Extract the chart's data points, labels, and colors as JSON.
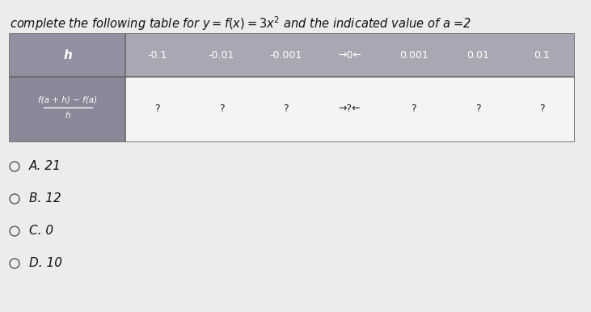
{
  "title": "complete the following table for $y = f(x) = 3x^2$ and the indicated value of $a$ =2",
  "bg_color": "#e8e8e8",
  "table_outer_color": "#888888",
  "header_cell_bg": "#a8a8b0",
  "label_cell_bg": "#989898",
  "label_cell_bg2": "#8a8a92",
  "data_cell_bg": "#f0f0f0",
  "h_values": [
    "-0.1",
    "-0.01",
    "-0.001",
    "→0←",
    "0.001",
    "0.01",
    "0.1"
  ],
  "f_values": [
    "?",
    "?",
    "?",
    "→?←",
    "?",
    "?",
    "?"
  ],
  "options": [
    "A. 21",
    "B. 12",
    "C. 0",
    "D. 10"
  ],
  "text_color": "#111111",
  "white_text": "#ffffff",
  "dark_text": "#222222",
  "font_size_title": 10.5,
  "font_size_table": 9,
  "font_size_options": 11
}
